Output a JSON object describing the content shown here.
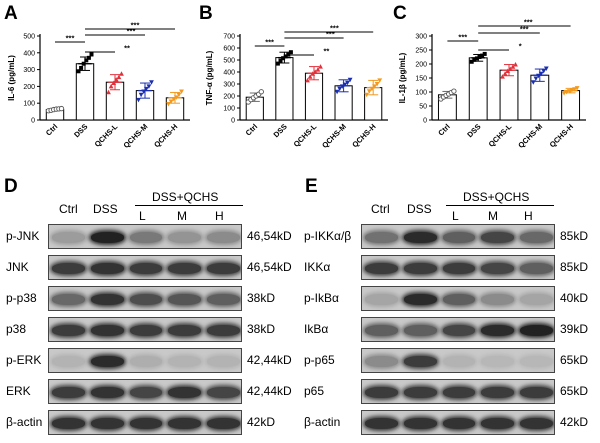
{
  "panels": {
    "A": "A",
    "B": "B",
    "C": "C",
    "D": "D",
    "E": "E"
  },
  "chart_data": [
    {
      "type": "bar",
      "panel": "A",
      "ylabel": "IL-6 (pg/mL)",
      "ylim": [
        0,
        500
      ],
      "yticks": [
        0,
        100,
        200,
        300,
        400,
        500
      ],
      "categories": [
        "Ctrl",
        "DSS",
        "QCHS-L",
        "QCHS-M",
        "QCHS-H"
      ],
      "values": [
        62,
        335,
        225,
        175,
        132
      ],
      "errors": [
        6,
        40,
        45,
        45,
        32
      ],
      "colors": [
        "#6b6b6b",
        "#000000",
        "#e0323c",
        "#1a2fb0",
        "#f29a1f"
      ],
      "points": [
        [
          55,
          58,
          62,
          65,
          66,
          68
        ],
        [
          290,
          310,
          335,
          355,
          370,
          390
        ],
        [
          165,
          200,
          220,
          240,
          255,
          275
        ],
        [
          120,
          150,
          170,
          185,
          200,
          225
        ],
        [
          95,
          110,
          125,
          135,
          150,
          170
        ]
      ],
      "significance": [
        {
          "from": 0,
          "to": 1,
          "label": "***"
        },
        {
          "from": 1,
          "to": 2,
          "label": "**"
        },
        {
          "from": 1,
          "to": 3,
          "label": "***"
        },
        {
          "from": 1,
          "to": 4,
          "label": "***"
        }
      ]
    },
    {
      "type": "bar",
      "panel": "B",
      "ylabel": "TNF-α (pg/mL)",
      "ylim": [
        0,
        700
      ],
      "yticks": [
        0,
        100,
        200,
        300,
        400,
        500,
        600,
        700
      ],
      "categories": [
        "Ctrl",
        "DSS",
        "QCHS-L",
        "QCHS-M",
        "QCHS-H"
      ],
      "values": [
        190,
        520,
        390,
        285,
        270
      ],
      "errors": [
        35,
        45,
        55,
        50,
        60
      ],
      "colors": [
        "#6b6b6b",
        "#000000",
        "#e0323c",
        "#1a2fb0",
        "#f29a1f"
      ],
      "points": [
        [
          150,
          170,
          185,
          200,
          215,
          235
        ],
        [
          470,
          495,
          515,
          530,
          545,
          565
        ],
        [
          330,
          360,
          385,
          400,
          420,
          445
        ],
        [
          235,
          260,
          280,
          295,
          310,
          335
        ],
        [
          210,
          240,
          260,
          280,
          300,
          330
        ]
      ],
      "significance": [
        {
          "from": 0,
          "to": 1,
          "label": "***"
        },
        {
          "from": 1,
          "to": 2,
          "label": "**"
        },
        {
          "from": 1,
          "to": 3,
          "label": "***"
        },
        {
          "from": 1,
          "to": 4,
          "label": "***"
        }
      ]
    },
    {
      "type": "bar",
      "panel": "C",
      "ylabel": "IL-1β (pg/mL)",
      "ylim": [
        0,
        300
      ],
      "yticks": [
        0,
        50,
        100,
        150,
        200,
        250,
        300
      ],
      "categories": [
        "Ctrl",
        "DSS",
        "QCHS-L",
        "QCHS-M",
        "QCHS-H"
      ],
      "values": [
        90,
        222,
        178,
        160,
        105
      ],
      "errors": [
        12,
        12,
        20,
        22,
        8
      ],
      "colors": [
        "#6b6b6b",
        "#000000",
        "#e0323c",
        "#1a2fb0",
        "#f29a1f"
      ],
      "points": [
        [
          75,
          82,
          88,
          93,
          98,
          103
        ],
        [
          208,
          215,
          220,
          225,
          230,
          236
        ],
        [
          155,
          165,
          175,
          182,
          190,
          198
        ],
        [
          135,
          148,
          158,
          165,
          175,
          184
        ],
        [
          96,
          100,
          103,
          107,
          110,
          114
        ]
      ],
      "significance": [
        {
          "from": 0,
          "to": 1,
          "label": "***"
        },
        {
          "from": 1,
          "to": 2,
          "label": "*"
        },
        {
          "from": 1,
          "to": 3,
          "label": "***"
        },
        {
          "from": 1,
          "to": 4,
          "label": "***"
        }
      ]
    }
  ],
  "blot_D": {
    "header": {
      "ctrl": "Ctrl",
      "dss": "DSS",
      "group": "DSS+QCHS",
      "l": "L",
      "m": "M",
      "h": "H"
    },
    "rows": [
      {
        "label": "p-JNK",
        "size": "46,54kD",
        "bands": [
          0.25,
          0.95,
          0.45,
          0.3,
          0.35
        ]
      },
      {
        "label": "JNK",
        "size": "46,54kD",
        "bands": [
          0.8,
          0.85,
          0.8,
          0.8,
          0.8
        ]
      },
      {
        "label": "p-p38",
        "size": "38kD",
        "bands": [
          0.55,
          0.85,
          0.7,
          0.65,
          0.6
        ]
      },
      {
        "label": "p38",
        "size": "38kD",
        "bands": [
          0.8,
          0.85,
          0.8,
          0.8,
          0.8
        ]
      },
      {
        "label": "p-ERK",
        "size": "42,44kD",
        "bands": [
          0.12,
          0.9,
          0.15,
          0.12,
          0.12
        ]
      },
      {
        "label": "ERK",
        "size": "42,44kD",
        "bands": [
          0.8,
          0.85,
          0.75,
          0.85,
          0.75
        ]
      },
      {
        "label": "β-actin",
        "size": "42kD",
        "bands": [
          0.85,
          0.85,
          0.85,
          0.85,
          0.85
        ]
      }
    ]
  },
  "blot_E": {
    "header": {
      "ctrl": "Ctrl",
      "dss": "DSS",
      "group": "DSS+QCHS",
      "l": "L",
      "m": "M",
      "h": "H"
    },
    "rows": [
      {
        "label": "p-IKKα/β",
        "size": "85kD",
        "bands": [
          0.5,
          0.9,
          0.6,
          0.75,
          0.55
        ]
      },
      {
        "label": "IKKα",
        "size": "85kD",
        "bands": [
          0.8,
          0.8,
          0.8,
          0.75,
          0.6
        ]
      },
      {
        "label": "p-IkBα",
        "size": "40kD",
        "bands": [
          0.2,
          0.9,
          0.6,
          0.35,
          0.2
        ]
      },
      {
        "label": "IkBα",
        "size": "39kD",
        "bands": [
          0.6,
          0.6,
          0.75,
          0.9,
          0.95
        ]
      },
      {
        "label": "p-p65",
        "size": "65kD",
        "bands": [
          0.35,
          0.8,
          0.12,
          0.1,
          0.1
        ]
      },
      {
        "label": "p65",
        "size": "65kD",
        "bands": [
          0.8,
          0.8,
          0.8,
          0.8,
          0.8
        ]
      },
      {
        "label": "β-actin",
        "size": "42kD",
        "bands": [
          0.85,
          0.85,
          0.85,
          0.85,
          0.85
        ]
      }
    ]
  }
}
